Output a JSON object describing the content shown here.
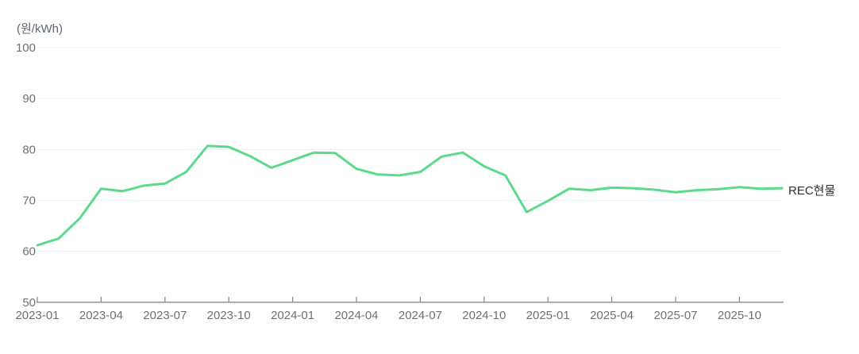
{
  "chart_data": {
    "type": "line",
    "title": "",
    "unit_label": "(원/kWh)",
    "xlabel": "",
    "ylabel": "원/kWh",
    "ylim": [
      50,
      100
    ],
    "y_ticks": [
      50,
      60,
      70,
      80,
      90,
      100
    ],
    "grid": true,
    "legend_position": "right-end-of-line",
    "x": [
      "2023-01",
      "2023-02",
      "2023-03",
      "2023-04",
      "2023-05",
      "2023-06",
      "2023-07",
      "2023-08",
      "2023-09",
      "2023-10",
      "2023-11",
      "2023-12",
      "2024-01",
      "2024-02",
      "2024-03",
      "2024-04",
      "2024-05",
      "2024-06",
      "2024-07",
      "2024-08",
      "2024-09",
      "2024-10",
      "2024-11",
      "2024-12",
      "2025-01",
      "2025-02",
      "2025-03",
      "2025-04",
      "2025-05",
      "2025-06",
      "2025-07",
      "2025-08",
      "2025-09",
      "2025-10",
      "2025-11",
      "2025-12"
    ],
    "x_tick_labels": [
      "2023-01",
      "2023-04",
      "2023-07",
      "2023-10",
      "2024-01",
      "2024-04",
      "2024-07",
      "2024-10",
      "2025-01",
      "2025-04",
      "2025-07",
      "2025-10"
    ],
    "x_tick_label_interval": 3,
    "series": [
      {
        "name": "REC현물",
        "color": "#5cd98a",
        "values": [
          61.2,
          62.5,
          66.5,
          72.3,
          71.8,
          72.9,
          73.3,
          75.6,
          80.7,
          80.5,
          78.7,
          76.4,
          77.9,
          79.4,
          79.3,
          76.2,
          75.1,
          74.9,
          75.6,
          78.6,
          79.4,
          76.7,
          74.9,
          67.7,
          69.9,
          72.3,
          72.0,
          72.5,
          72.4,
          72.1,
          71.6,
          72.0,
          72.2,
          72.6,
          72.3,
          72.4
        ]
      }
    ],
    "colors": {
      "grid_line": "#e9edf4",
      "axis_line": "#81878f",
      "tick_label": "#6e7079",
      "series_line": "#5cd98a",
      "series_label_text": "#2b2f33",
      "unit_label_text": "#5e6670",
      "background": "#ffffff"
    }
  }
}
